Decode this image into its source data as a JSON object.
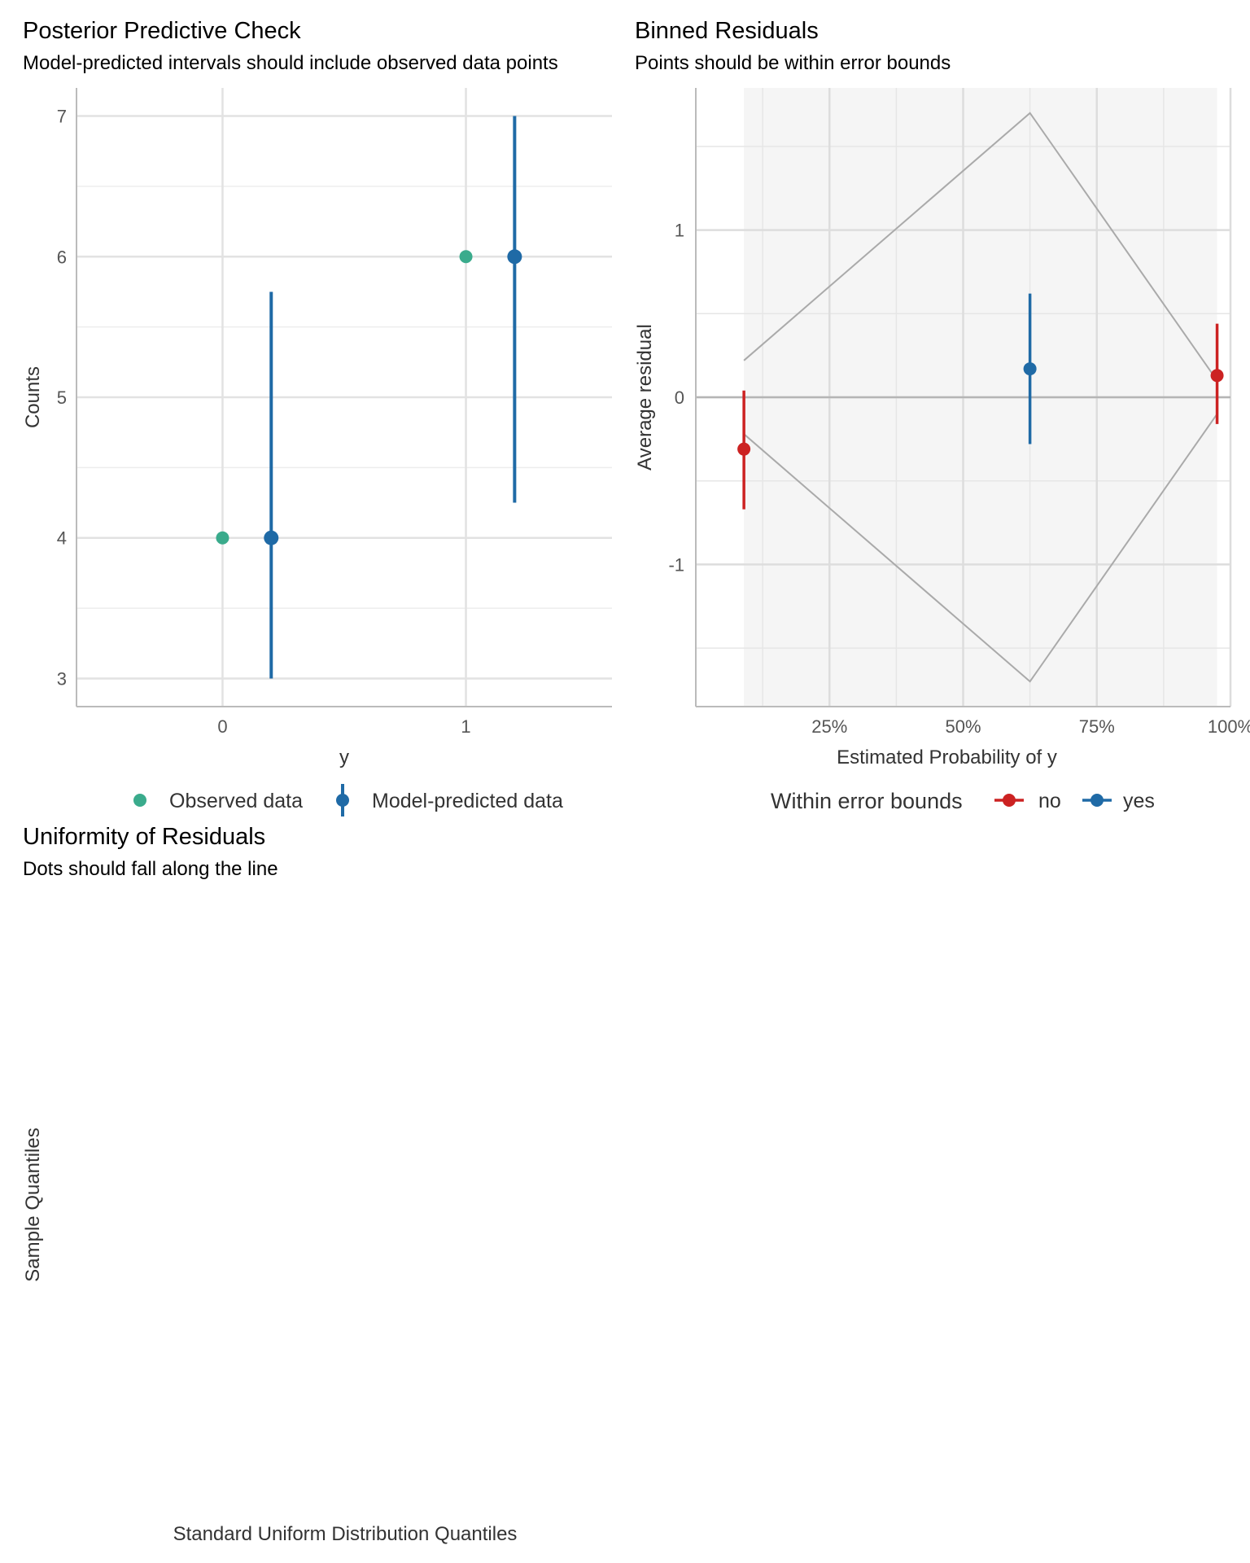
{
  "chart_data": [
    {
      "type": "scatter",
      "title": "Posterior Predictive Check",
      "subtitle": "Model-predicted intervals should include observed data points",
      "xlabel": "y",
      "ylabel": "Counts",
      "x_ticks": [
        "0",
        "1"
      ],
      "y_ticks": [
        "3",
        "4",
        "5",
        "6",
        "7"
      ],
      "xlim": [
        -0.6,
        1.6
      ],
      "ylim": [
        2.8,
        7.2
      ],
      "grid": true,
      "legend_position": "bottom",
      "legend": [
        "Observed data",
        "Model-predicted data"
      ],
      "colors": {
        "observed": "#3aab8c",
        "predicted": "#1f6aa6"
      },
      "series": [
        {
          "name": "Observed data",
          "points": [
            {
              "x": 0,
              "y": 4
            },
            {
              "x": 1,
              "y": 6
            }
          ]
        },
        {
          "name": "Model-predicted data",
          "points": [
            {
              "x": 0,
              "y": 4,
              "low": 3.0,
              "high": 5.75
            },
            {
              "x": 1,
              "y": 6,
              "low": 4.25,
              "high": 7.0
            }
          ]
        }
      ]
    },
    {
      "type": "scatter",
      "title": "Binned Residuals",
      "subtitle": "Points should be within error bounds",
      "xlabel": "Estimated Probability of y",
      "ylabel": "Average residual",
      "x_ticks": [
        "25%",
        "50%",
        "75%",
        "100%"
      ],
      "y_ticks": [
        "-1",
        "0",
        "1"
      ],
      "xlim": [
        0.0,
        1.0
      ],
      "ylim": [
        -1.85,
        1.85
      ],
      "grid": true,
      "shaded_region": [
        0.09,
        0.975
      ],
      "legend_position": "bottom",
      "legend_title": "Within error bounds",
      "legend": [
        "no",
        "yes"
      ],
      "colors": {
        "no": "#cc2222",
        "yes": "#1f6aa6",
        "bounds": "#aaaaaa",
        "shade": "#f5f5f5"
      },
      "bounds": {
        "x": [
          0.09,
          0.625,
          0.975
        ],
        "upper": [
          0.22,
          1.7,
          0.1
        ],
        "lower": [
          -0.22,
          -1.7,
          -0.1
        ]
      },
      "points": [
        {
          "x": 0.09,
          "y": -0.31,
          "low": -0.67,
          "high": 0.04,
          "group": "no"
        },
        {
          "x": 0.625,
          "y": 0.17,
          "low": -0.28,
          "high": 0.62,
          "group": "yes"
        },
        {
          "x": 0.975,
          "y": 0.13,
          "low": -0.16,
          "high": 0.44,
          "group": "no"
        }
      ]
    },
    {
      "type": "scatter",
      "title": "Uniformity of Residuals",
      "subtitle": "Dots should fall along the line",
      "xlabel": "Standard Uniform Distribution Quantiles",
      "ylabel": "Sample Quantiles",
      "points": []
    }
  ]
}
